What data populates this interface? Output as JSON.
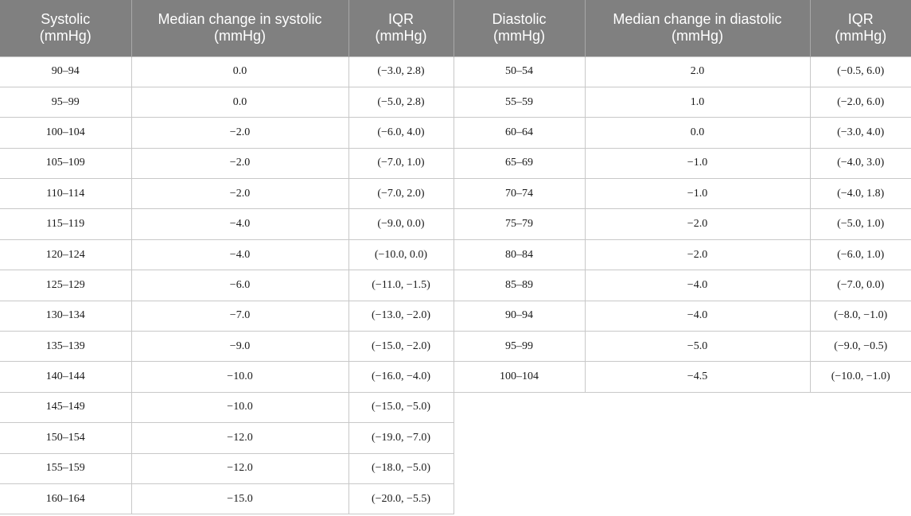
{
  "headers": [
    {
      "line1": "Systolic",
      "line2": "(mmHg)"
    },
    {
      "line1": "Median change in systolic",
      "line2": "(mmHg)"
    },
    {
      "line1": "IQR",
      "line2": "(mmHg)"
    },
    {
      "line1": "Diastolic",
      "line2": "(mmHg)"
    },
    {
      "line1": "Median change in diastolic",
      "line2": "(mmHg)"
    },
    {
      "line1": "IQR",
      "line2": "(mmHg)"
    }
  ],
  "rows": [
    {
      "sys": "90–94",
      "sys_median": "0.0",
      "sys_iqr": "(−3.0, 2.8)",
      "dia": "50–54",
      "dia_median": "2.0",
      "dia_iqr": "(−0.5, 6.0)"
    },
    {
      "sys": "95–99",
      "sys_median": "0.0",
      "sys_iqr": "(−5.0, 2.8)",
      "dia": "55–59",
      "dia_median": "1.0",
      "dia_iqr": "(−2.0, 6.0)"
    },
    {
      "sys": "100–104",
      "sys_median": "−2.0",
      "sys_iqr": "(−6.0, 4.0)",
      "dia": "60–64",
      "dia_median": "0.0",
      "dia_iqr": "(−3.0, 4.0)"
    },
    {
      "sys": "105–109",
      "sys_median": "−2.0",
      "sys_iqr": "(−7.0, 1.0)",
      "dia": "65–69",
      "dia_median": "−1.0",
      "dia_iqr": "(−4.0, 3.0)"
    },
    {
      "sys": "110–114",
      "sys_median": "−2.0",
      "sys_iqr": "(−7.0, 2.0)",
      "dia": "70–74",
      "dia_median": "−1.0",
      "dia_iqr": "(−4.0, 1.8)"
    },
    {
      "sys": "115–119",
      "sys_median": "−4.0",
      "sys_iqr": "(−9.0, 0.0)",
      "dia": "75–79",
      "dia_median": "−2.0",
      "dia_iqr": "(−5.0, 1.0)"
    },
    {
      "sys": "120–124",
      "sys_median": "−4.0",
      "sys_iqr": "(−10.0, 0.0)",
      "dia": "80–84",
      "dia_median": "−2.0",
      "dia_iqr": "(−6.0, 1.0)"
    },
    {
      "sys": "125–129",
      "sys_median": "−6.0",
      "sys_iqr": "(−11.0, −1.5)",
      "dia": "85–89",
      "dia_median": "−4.0",
      "dia_iqr": "(−7.0, 0.0)"
    },
    {
      "sys": "130–134",
      "sys_median": "−7.0",
      "sys_iqr": "(−13.0, −2.0)",
      "dia": "90–94",
      "dia_median": "−4.0",
      "dia_iqr": "(−8.0, −1.0)"
    },
    {
      "sys": "135–139",
      "sys_median": "−9.0",
      "sys_iqr": "(−15.0, −2.0)",
      "dia": "95–99",
      "dia_median": "−5.0",
      "dia_iqr": "(−9.0, −0.5)"
    },
    {
      "sys": "140–144",
      "sys_median": "−10.0",
      "sys_iqr": "(−16.0, −4.0)",
      "dia": "100–104",
      "dia_median": "−4.5",
      "dia_iqr": "(−10.0, −1.0)"
    },
    {
      "sys": "145–149",
      "sys_median": "−10.0",
      "sys_iqr": "(−15.0, −5.0)",
      "dia": "",
      "dia_median": "",
      "dia_iqr": ""
    },
    {
      "sys": "150–154",
      "sys_median": "−12.0",
      "sys_iqr": "(−19.0, −7.0)",
      "dia": "",
      "dia_median": "",
      "dia_iqr": ""
    },
    {
      "sys": "155–159",
      "sys_median": "−12.0",
      "sys_iqr": "(−18.0, −5.0)",
      "dia": "",
      "dia_median": "",
      "dia_iqr": ""
    },
    {
      "sys": "160–164",
      "sys_median": "−15.0",
      "sys_iqr": "(−20.0, −5.5)",
      "dia": "",
      "dia_median": "",
      "dia_iqr": ""
    }
  ]
}
